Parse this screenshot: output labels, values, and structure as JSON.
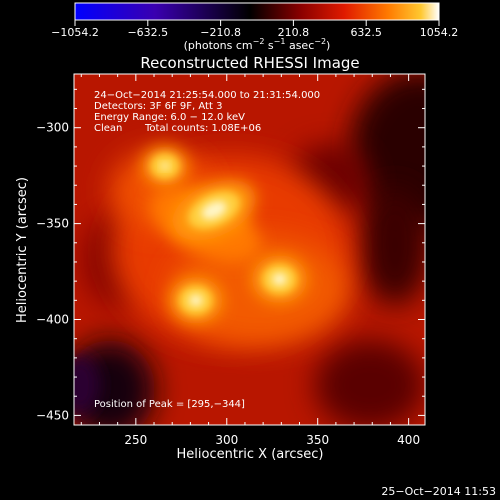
{
  "colorbar": {
    "tick_labels": [
      "−1054.2",
      "−632.5",
      "−210.8",
      "210.8",
      "632.5",
      "1054.2"
    ],
    "unit_prefix": "(photons cm",
    "unit_sup1": "−2",
    "unit_mid1": " s",
    "unit_sup2": "−1",
    "unit_mid2": " asec",
    "unit_sup3": "−2",
    "unit_suffix": ")",
    "colormap": [
      "#0000ff",
      "#3a00b0",
      "#000000",
      "#8a0000",
      "#e01a00",
      "#ff7a00",
      "#ffc830",
      "#ffffff"
    ]
  },
  "chart_data": {
    "type": "heatmap",
    "title": "Reconstructed RHESSI Image",
    "xlabel": "Heliocentric X (arcsec)",
    "ylabel": "Heliocentric Y (arcsec)",
    "xlim": [
      216,
      409
    ],
    "ylim": [
      -455,
      -272
    ],
    "x_ticks": [
      250,
      300,
      350,
      400
    ],
    "y_ticks": [
      -300,
      -350,
      -400,
      -450
    ],
    "x_tick_labels": [
      "250",
      "300",
      "350",
      "400"
    ],
    "y_tick_labels": [
      "−300",
      "−350",
      "−400",
      "−450"
    ],
    "peak": [
      295,
      -344
    ],
    "sources": [
      {
        "x": 293,
        "y": -343,
        "level": 1.0
      },
      {
        "x": 329,
        "y": -379,
        "level": 0.85
      },
      {
        "x": 283,
        "y": -390,
        "level": 0.8
      },
      {
        "x": 266,
        "y": -320,
        "level": 0.55
      }
    ]
  },
  "annotations": {
    "time_range": "24−Oct−2014 21:25:54.000 to 21:31:54.000",
    "detectors": "Detectors: 3F 6F 9F, Att 3",
    "energy_range": "Energy Range: 6.0 − 12.0 keV",
    "clean_label": "Clean",
    "total_counts": "Total counts: 1.08E+06",
    "peak_position": "Position of Peak = [295,−344]"
  },
  "timestamp": "25−Oct−2014 11:53"
}
